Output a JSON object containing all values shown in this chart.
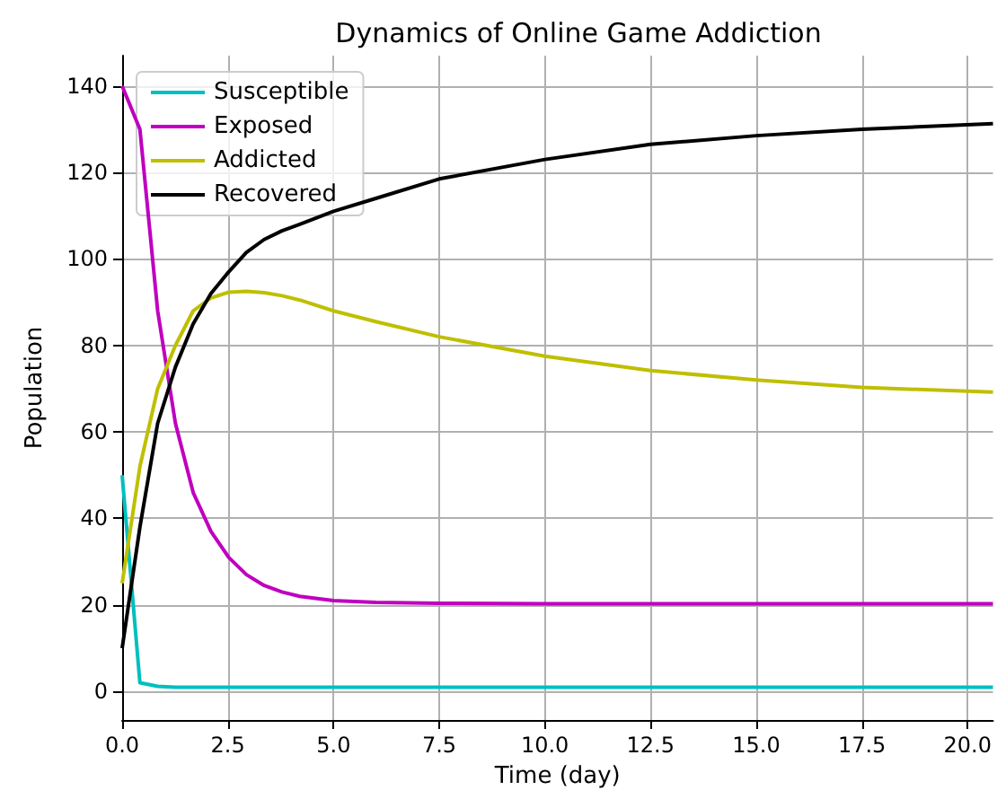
{
  "chart_data": {
    "type": "line",
    "title": "Dynamics of Online Game Addiction",
    "xlabel": "Time (day)",
    "ylabel": "Population",
    "x": [
      0,
      0.42,
      0.84,
      1.26,
      1.68,
      2.1,
      2.52,
      2.94,
      3.36,
      3.78,
      4.2,
      5,
      6,
      7.5,
      10,
      12.5,
      15,
      17.5,
      20.6
    ],
    "series": [
      {
        "name": "Susceptible",
        "color": "#00bfbf",
        "values": [
          50,
          2,
          1.2,
          1,
          1,
          1,
          1,
          1,
          1,
          1,
          1,
          1,
          1,
          1,
          1,
          1,
          1,
          1,
          1
        ]
      },
      {
        "name": "Exposed",
        "color": "#bf00bf",
        "values": [
          140,
          130,
          88,
          62,
          46,
          37,
          31,
          27,
          24.5,
          23,
          22,
          21,
          20.6,
          20.4,
          20.3,
          20.3,
          20.3,
          20.3,
          20.3
        ]
      },
      {
        "name": "Addicted",
        "color": "#bfbf00",
        "values": [
          25,
          52,
          70,
          80,
          88,
          91,
          92.3,
          92.5,
          92.2,
          91.5,
          90.5,
          88,
          85.5,
          82,
          77.5,
          74.2,
          72,
          70.3,
          69.2
        ]
      },
      {
        "name": "Recovered",
        "color": "#000000",
        "values": [
          10,
          38,
          62,
          75,
          85,
          92,
          97,
          101.5,
          104.5,
          106.5,
          108,
          111,
          114,
          118.5,
          123,
          126.5,
          128.5,
          130,
          131.3
        ]
      }
    ],
    "xlim": [
      0,
      20.6
    ],
    "ylim": [
      -6.6,
      147
    ],
    "xticks": [
      {
        "value": 0,
        "label": "0.0"
      },
      {
        "value": 2.5,
        "label": "2.5"
      },
      {
        "value": 5,
        "label": "5.0"
      },
      {
        "value": 7.5,
        "label": "7.5"
      },
      {
        "value": 10,
        "label": "10.0"
      },
      {
        "value": 12.5,
        "label": "12.5"
      },
      {
        "value": 15,
        "label": "15.0"
      },
      {
        "value": 17.5,
        "label": "17.5"
      },
      {
        "value": 20,
        "label": "20.0"
      }
    ],
    "yticks": [
      0,
      20,
      40,
      60,
      80,
      100,
      120,
      140
    ],
    "grid": true,
    "legend": "top left",
    "marker": "none",
    "line_style": "solid"
  }
}
